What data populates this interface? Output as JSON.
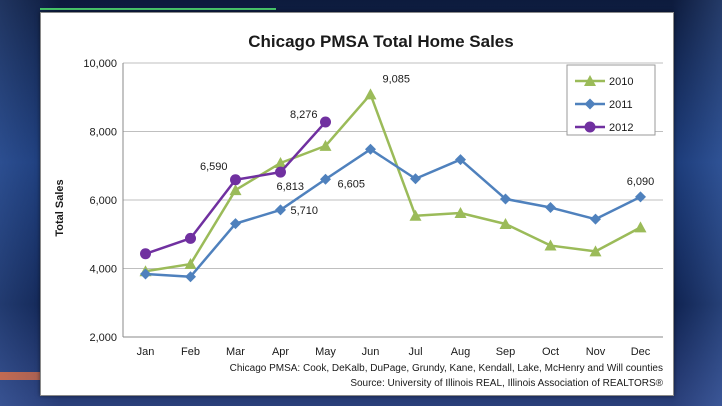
{
  "chart_data": {
    "type": "line",
    "title": "Chicago PMSA Total Home Sales",
    "ylabel": "Total  Sales",
    "xlabel": "",
    "categories": [
      "Jan",
      "Feb",
      "Mar",
      "Apr",
      "May",
      "Jun",
      "Jul",
      "Aug",
      "Sep",
      "Oct",
      "Nov",
      "Dec"
    ],
    "ylim": [
      2000,
      10000
    ],
    "yticks": [
      2000,
      4000,
      6000,
      8000,
      10000
    ],
    "ytick_labels": [
      "2,000",
      "4,000",
      "6,000",
      "8,000",
      "10,000"
    ],
    "grid": true,
    "legend_position": "top-right",
    "series": [
      {
        "name": "2010",
        "color": "#9bbb59",
        "marker": "triangle",
        "values": [
          3920,
          4130,
          6290,
          7080,
          7580,
          9085,
          5540,
          5620,
          5300,
          4670,
          4500,
          5200
        ]
      },
      {
        "name": "2011",
        "color": "#4f81bd",
        "marker": "diamond",
        "values": [
          3840,
          3760,
          5310,
          5710,
          6605,
          7480,
          6620,
          7180,
          6030,
          5780,
          5440,
          6090
        ]
      },
      {
        "name": "2012",
        "color": "#7030a0",
        "marker": "circle",
        "values": [
          4430,
          4880,
          6590,
          6813,
          8276,
          null,
          null,
          null,
          null,
          null,
          null,
          null
        ]
      }
    ],
    "data_labels": [
      {
        "series": 0,
        "index": 5,
        "text": "9,085"
      },
      {
        "series": 1,
        "index": 3,
        "text": "5,710"
      },
      {
        "series": 1,
        "index": 4,
        "text": "6,605"
      },
      {
        "series": 1,
        "index": 11,
        "text": "6,090"
      },
      {
        "series": 2,
        "index": 2,
        "text": "6,590"
      },
      {
        "series": 2,
        "index": 3,
        "text": "6,813"
      },
      {
        "series": 2,
        "index": 4,
        "text": "8,276"
      }
    ],
    "footnote": "Chicago PMSA: Cook, DeKalb, DuPage, Grundy, Kane, Kendall, Lake, McHenry and Will counties",
    "source": "Source: University of Illinois REAL, Illinois Association of REALTORS®"
  }
}
